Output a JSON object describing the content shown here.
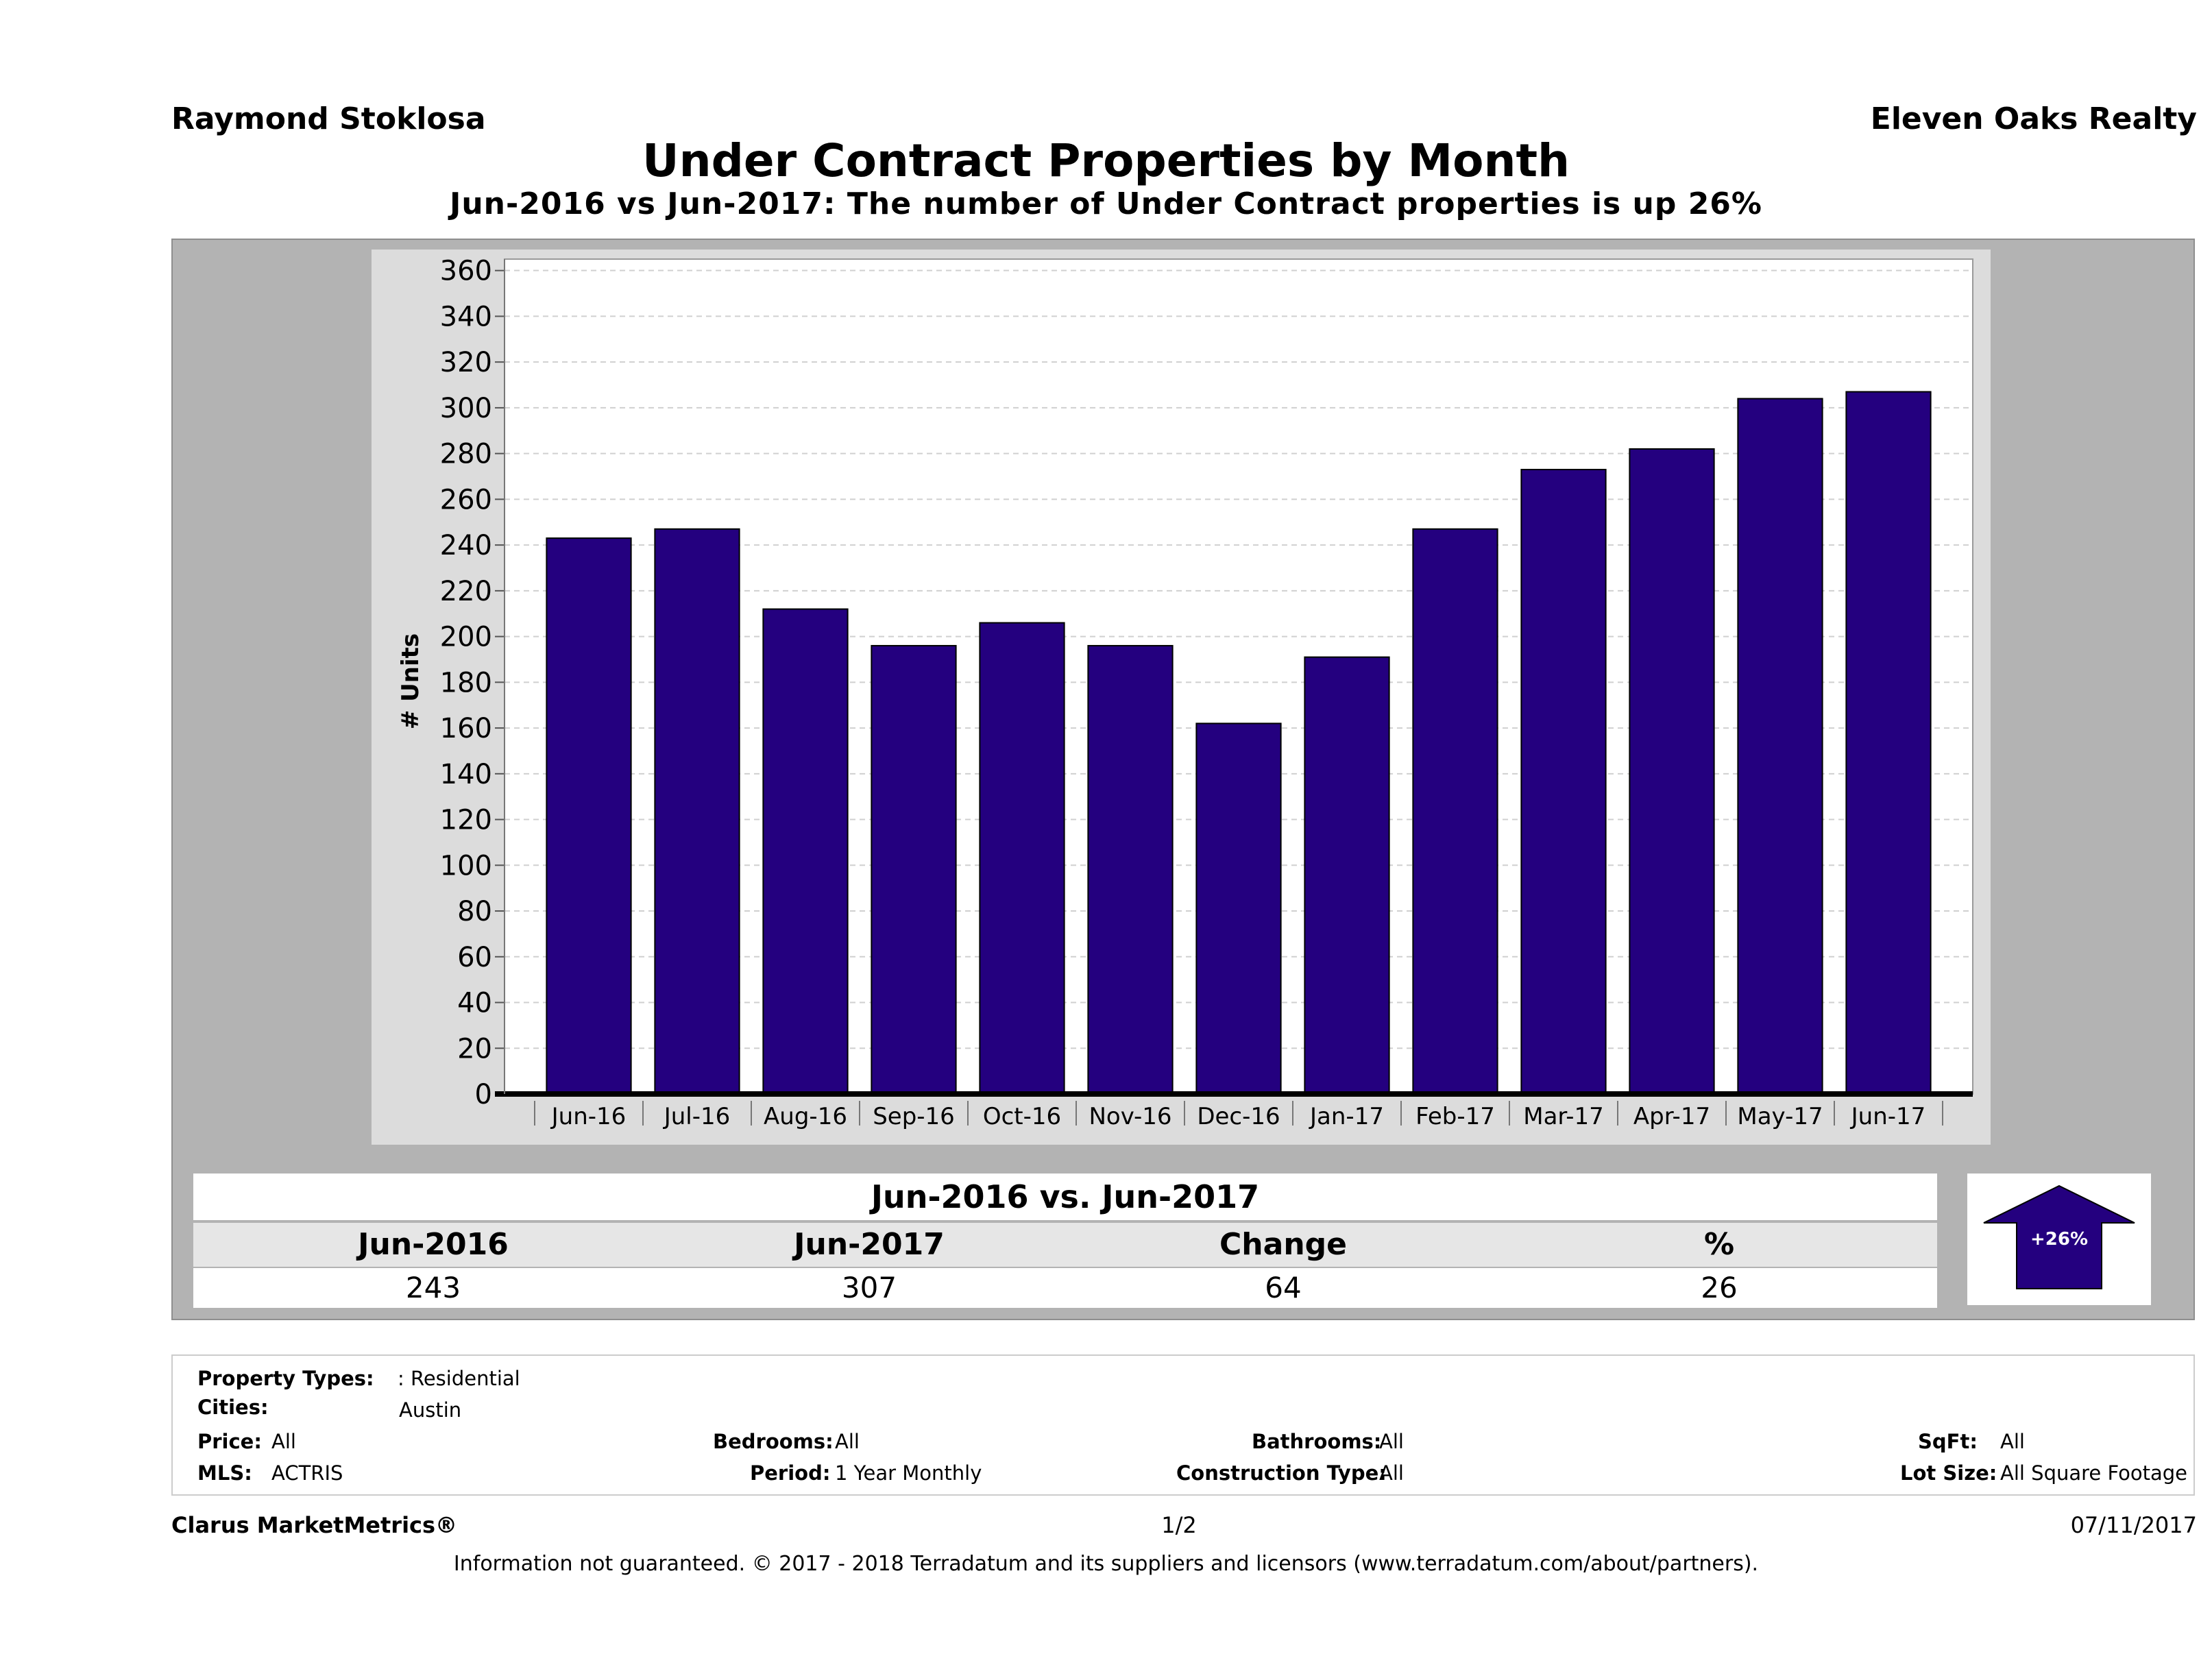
{
  "header": {
    "agent": "Raymond Stoklosa",
    "company": "Eleven Oaks Realty",
    "title": "Under Contract Properties by Month",
    "subtitle": "Jun-2016 vs Jun-2017: The number of Under Contract  properties is up 26%"
  },
  "chart_data": {
    "type": "bar",
    "title": "Under Contract Properties by Month",
    "xlabel": "",
    "ylabel": "# Units",
    "categories": [
      "Jun-16",
      "Jul-16",
      "Aug-16",
      "Sep-16",
      "Oct-16",
      "Nov-16",
      "Dec-16",
      "Jan-17",
      "Feb-17",
      "Mar-17",
      "Apr-17",
      "May-17",
      "Jun-17"
    ],
    "values": [
      243,
      247,
      212,
      196,
      206,
      196,
      162,
      191,
      247,
      273,
      282,
      304,
      307
    ],
    "ylim": [
      0,
      365
    ],
    "yticks": [
      0,
      20,
      40,
      60,
      80,
      100,
      120,
      140,
      160,
      180,
      200,
      220,
      240,
      260,
      280,
      300,
      320,
      340,
      360
    ],
    "grid": true,
    "colors": {
      "bar": "#24007f",
      "bar_edge": "#000000",
      "plot_bg": "#ffffff",
      "grid": "#d0d0d0"
    }
  },
  "summary": {
    "title": "Jun-2016 vs. Jun-2017",
    "headers": [
      "Jun-2016",
      "Jun-2017",
      "Change",
      "%"
    ],
    "values": [
      "243",
      "307",
      "64",
      "26"
    ],
    "arrow_label": "+26%",
    "arrow_color": "#24007f"
  },
  "criteria": {
    "property_types_label": "Property Types:",
    "property_types_value": ": Residential",
    "cities_label": "Cities:",
    "cities_value": "Austin",
    "price_label": "Price:",
    "price_value": "All",
    "mls_label": "MLS:",
    "mls_value": "ACTRIS",
    "bedrooms_label": "Bedrooms:",
    "bedrooms_value": "All",
    "period_label": "Period:",
    "period_value": "1 Year Monthly",
    "bathrooms_label": "Bathrooms:",
    "bathrooms_value": "All",
    "construction_label": "Construction Type:",
    "construction_value": "All",
    "sqft_label": "SqFt:",
    "sqft_value": "All",
    "lotsize_label": "Lot Size:",
    "lotsize_value": "All Square Footage"
  },
  "footer": {
    "brand": "Clarus MarketMetrics®",
    "page": "1/2",
    "date": "07/11/2017",
    "disclaimer": "Information not guaranteed. © 2017 - 2018 Terradatum and its suppliers and licensors (www.terradatum.com/about/partners)."
  }
}
